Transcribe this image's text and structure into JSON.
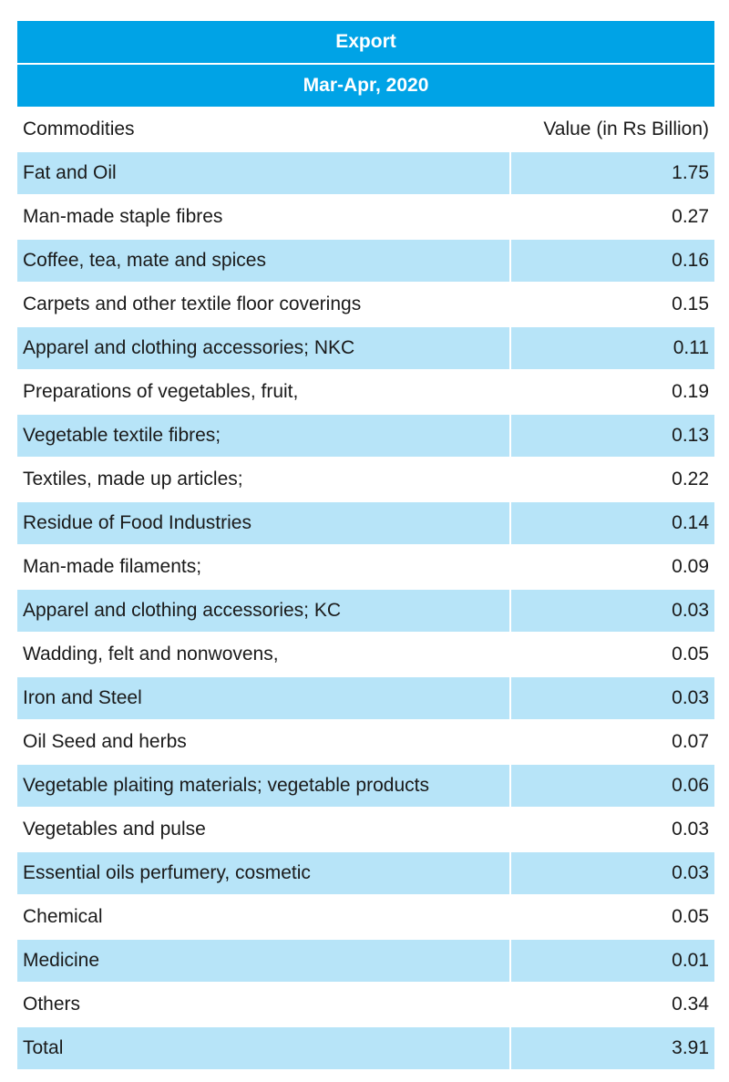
{
  "chart_data": {
    "type": "table",
    "title": "Export",
    "subtitle": "Mar-Apr, 2020",
    "columns": [
      "Commodities",
      "Value (in Rs Billion)"
    ],
    "rows": [
      {
        "commodity": "Fat and Oil",
        "value": "1.75"
      },
      {
        "commodity": "Man-made staple fibres",
        "value": "0.27"
      },
      {
        "commodity": "Coffee, tea, mate and spices",
        "value": "0.16"
      },
      {
        "commodity": "Carpets and other textile floor coverings",
        "value": "0.15"
      },
      {
        "commodity": "Apparel and clothing accessories; NKC",
        "value": "0.11"
      },
      {
        "commodity": "Preparations of vegetables, fruit,",
        "value": "0.19"
      },
      {
        "commodity": "Vegetable textile fibres;",
        "value": "0.13"
      },
      {
        "commodity": "Textiles, made up articles;",
        "value": "0.22"
      },
      {
        "commodity": "Residue of Food Industries",
        "value": "0.14"
      },
      {
        "commodity": "Man-made filaments;",
        "value": "0.09"
      },
      {
        "commodity": "Apparel and clothing accessories;  KC",
        "value": "0.03"
      },
      {
        "commodity": "Wadding, felt and nonwovens,",
        "value": "0.05"
      },
      {
        "commodity": "Iron and Steel",
        "value": "0.03"
      },
      {
        "commodity": "Oil Seed  and herbs",
        "value": "0.07"
      },
      {
        "commodity": "Vegetable plaiting materials; vegetable products",
        "value": "0.06"
      },
      {
        "commodity": "Vegetables and pulse",
        "value": "0.03"
      },
      {
        "commodity": "Essential oils perfumery, cosmetic",
        "value": "0.03"
      },
      {
        "commodity": "Chemical",
        "value": "0.05"
      },
      {
        "commodity": "Medicine",
        "value": "0.01"
      },
      {
        "commodity": "Others",
        "value": "0.34"
      },
      {
        "commodity": "Total",
        "value": "3.91"
      }
    ]
  },
  "colors": {
    "header": "#00a3e6",
    "stripe": "#b7e4f8",
    "text": "#1a1a1a"
  }
}
